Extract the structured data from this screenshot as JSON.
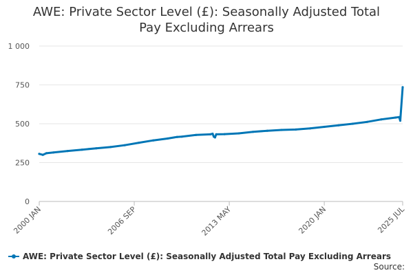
{
  "chart_data": {
    "type": "line",
    "title_line1": "AWE: Private Sector Level (£): Seasonally Adjusted Total",
    "title_line2": "Pay Excluding Arrears",
    "x_tick_labels": [
      "2000 JAN",
      "2006 SEP",
      "2013 MAY",
      "2020 JAN",
      "2025 JUL"
    ],
    "x_range": [
      "2000-01",
      "2025-07"
    ],
    "ylim": [
      0,
      1000
    ],
    "y_ticks": [
      0,
      250,
      500,
      750,
      1000
    ],
    "y_tick_labels": [
      "0",
      "250",
      "500",
      "750",
      "1 000"
    ],
    "grid": true,
    "legend_position": "bottom",
    "series": [
      {
        "name": "AWE: Private Sector Level (£): Seasonally Adjusted Total Pay Excluding Arrears",
        "color": "#0076b6",
        "points": [
          [
            "2000-01",
            306
          ],
          [
            "2000-04",
            300
          ],
          [
            "2000-07",
            310
          ],
          [
            "2001-01",
            315
          ],
          [
            "2002-01",
            325
          ],
          [
            "2003-01",
            333
          ],
          [
            "2004-01",
            342
          ],
          [
            "2005-01",
            350
          ],
          [
            "2006-01",
            362
          ],
          [
            "2007-01",
            378
          ],
          [
            "2008-01",
            393
          ],
          [
            "2009-01",
            405
          ],
          [
            "2009-09",
            415
          ],
          [
            "2010-01",
            417
          ],
          [
            "2011-01",
            428
          ],
          [
            "2012-01",
            432
          ],
          [
            "2012-03",
            436
          ],
          [
            "2012-04",
            417
          ],
          [
            "2012-05",
            412
          ],
          [
            "2012-06",
            432
          ],
          [
            "2013-01",
            433
          ],
          [
            "2014-01",
            438
          ],
          [
            "2015-01",
            448
          ],
          [
            "2016-01",
            455
          ],
          [
            "2017-01",
            460
          ],
          [
            "2018-01",
            463
          ],
          [
            "2019-01",
            470
          ],
          [
            "2020-01",
            480
          ],
          [
            "2021-01",
            490
          ],
          [
            "2022-01",
            500
          ],
          [
            "2023-01",
            512
          ],
          [
            "2024-01",
            528
          ],
          [
            "2025-01",
            540
          ],
          [
            "2025-04",
            543
          ],
          [
            "2025-05",
            520
          ],
          [
            "2025-07",
            735
          ]
        ]
      }
    ],
    "source_label": "Source:"
  }
}
